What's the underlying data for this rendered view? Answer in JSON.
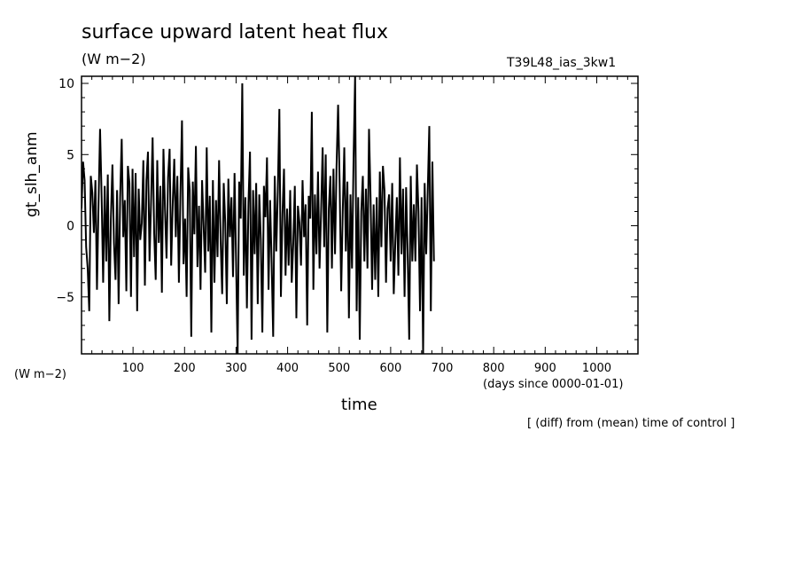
{
  "header": {
    "title": "surface upward latent heat flux",
    "units": "(W m−2)",
    "run_id": "T39L48_ias_3kw1"
  },
  "footer": {
    "note": "[ (diff) from (mean) time of control ]"
  },
  "chart_data": {
    "type": "line",
    "xlabel": "time",
    "xunits": "(days since 0000-01-01)",
    "ylabel": "gt_slh_anm",
    "yunits": "(W m−2)",
    "xlim": [
      0,
      1080
    ],
    "ylim": [
      -9,
      10.5
    ],
    "x_ticks": [
      100,
      200,
      300,
      400,
      500,
      600,
      700,
      800,
      900,
      1000
    ],
    "y_ticks": [
      -5,
      0,
      5,
      10
    ],
    "grid": false,
    "legend": "none",
    "line_color": "#000000",
    "series": [
      {
        "x_start": 0,
        "x_step": 3,
        "values": [
          1.2,
          4.5,
          3.2,
          -1.5,
          -3.0,
          -6.0,
          3.5,
          2.3,
          -0.5,
          3.2,
          -4.5,
          1.5,
          6.8,
          2.1,
          -4.0,
          2.8,
          -2.5,
          3.6,
          -6.7,
          0.5,
          4.3,
          -1.2,
          -3.8,
          2.5,
          -5.5,
          2.0,
          6.1,
          -0.8,
          1.8,
          -4.6,
          4.2,
          3.0,
          -5.0,
          4.0,
          -2.2,
          3.7,
          -6.0,
          2.6,
          -1.0,
          0.2,
          4.6,
          -4.2,
          3.2,
          5.2,
          -2.5,
          1.7,
          6.2,
          -0.5,
          -3.8,
          4.6,
          -1.2,
          2.8,
          -4.7,
          5.4,
          1.2,
          -2.3,
          3.4,
          5.4,
          -2.8,
          1.5,
          4.7,
          -0.8,
          3.5,
          -4.0,
          2.2,
          7.4,
          -2.7,
          0.5,
          -5.0,
          4.1,
          2.5,
          -7.8,
          3.1,
          -0.6,
          5.6,
          -2.9,
          1.4,
          -4.5,
          3.2,
          0.0,
          -3.3,
          5.5,
          -1.8,
          2.1,
          -7.5,
          3.2,
          -4.0,
          1.8,
          -2.2,
          4.6,
          -1.0,
          -4.8,
          3.0,
          0.2,
          -5.5,
          3.3,
          -0.8,
          2.0,
          -3.6,
          3.7,
          -2.5,
          -9.0,
          3.1,
          0.5,
          10.0,
          -3.5,
          2.0,
          -5.8,
          1.6,
          5.2,
          -8.0,
          2.5,
          -2.0,
          3.0,
          -5.5,
          2.2,
          -1.0,
          -7.5,
          2.8,
          0.6,
          4.8,
          -4.5,
          1.8,
          -2.6,
          -7.8,
          3.5,
          -1.8,
          2.4,
          8.2,
          -5.0,
          0.8,
          4.0,
          -3.5,
          1.2,
          -2.8,
          2.5,
          -4.0,
          -1.2,
          2.8,
          -6.5,
          1.4,
          0.2,
          -2.8,
          3.2,
          -0.8,
          1.5,
          -7.0,
          2.1,
          0.5,
          8.0,
          -4.5,
          2.2,
          -2.0,
          3.8,
          -3.0,
          1.0,
          5.5,
          -1.5,
          5.0,
          -7.5,
          1.2,
          3.5,
          -3.0,
          4.0,
          -2.0,
          4.2,
          8.5,
          3.0,
          -4.6,
          1.0,
          5.5,
          -1.8,
          3.1,
          -6.5,
          2.2,
          -3.0,
          4.7,
          10.5,
          -6.0,
          2.0,
          -8.0,
          1.0,
          3.5,
          -2.5,
          2.6,
          -3.0,
          6.8,
          2.0,
          -4.5,
          1.5,
          -3.8,
          2.0,
          -5.0,
          3.8,
          -1.5,
          4.2,
          2.5,
          -4.0,
          1.2,
          2.2,
          -2.5,
          3.0,
          -4.8,
          -1.2,
          2.0,
          -3.5,
          4.8,
          -2.0,
          2.6,
          -5.0,
          2.7,
          -2.0,
          -8.0,
          3.5,
          -2.5,
          1.5,
          -2.5,
          4.3,
          1.0,
          -6.0,
          2.0,
          -9.0,
          3.0,
          -2.0,
          2.5,
          7.0,
          -6.0,
          4.5,
          -2.5
        ]
      }
    ]
  }
}
